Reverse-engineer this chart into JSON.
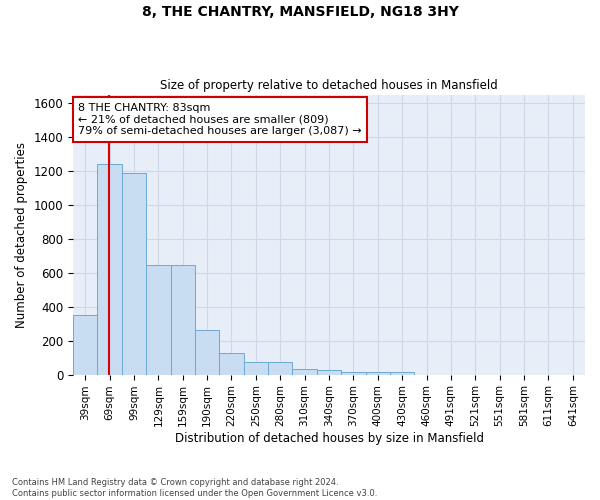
{
  "title": "8, THE CHANTRY, MANSFIELD, NG18 3HY",
  "subtitle": "Size of property relative to detached houses in Mansfield",
  "xlabel": "Distribution of detached houses by size in Mansfield",
  "ylabel": "Number of detached properties",
  "categories": [
    "39sqm",
    "69sqm",
    "99sqm",
    "129sqm",
    "159sqm",
    "190sqm",
    "220sqm",
    "250sqm",
    "280sqm",
    "310sqm",
    "340sqm",
    "370sqm",
    "400sqm",
    "430sqm",
    "460sqm",
    "491sqm",
    "521sqm",
    "551sqm",
    "581sqm",
    "611sqm",
    "641sqm"
  ],
  "values": [
    350,
    1240,
    1190,
    645,
    645,
    260,
    125,
    75,
    75,
    35,
    25,
    15,
    15,
    15,
    0,
    0,
    0,
    0,
    0,
    0,
    0
  ],
  "bar_color": "#c8ddf2",
  "bar_edge_color": "#6aaad4",
  "property_line_color": "#dd0000",
  "annotation_text": "8 THE CHANTRY: 83sqm\n← 21% of detached houses are smaller (809)\n79% of semi-detached houses are larger (3,087) →",
  "annotation_box_facecolor": "#ffffff",
  "annotation_box_edgecolor": "#cc0000",
  "ylim": [
    0,
    1650
  ],
  "yticks": [
    0,
    200,
    400,
    600,
    800,
    1000,
    1200,
    1400,
    1600
  ],
  "grid_color": "#d0d8e8",
  "bg_color": "#e8eef8",
  "footnote": "Contains HM Land Registry data © Crown copyright and database right 2024.\nContains public sector information licensed under the Open Government Licence v3.0."
}
